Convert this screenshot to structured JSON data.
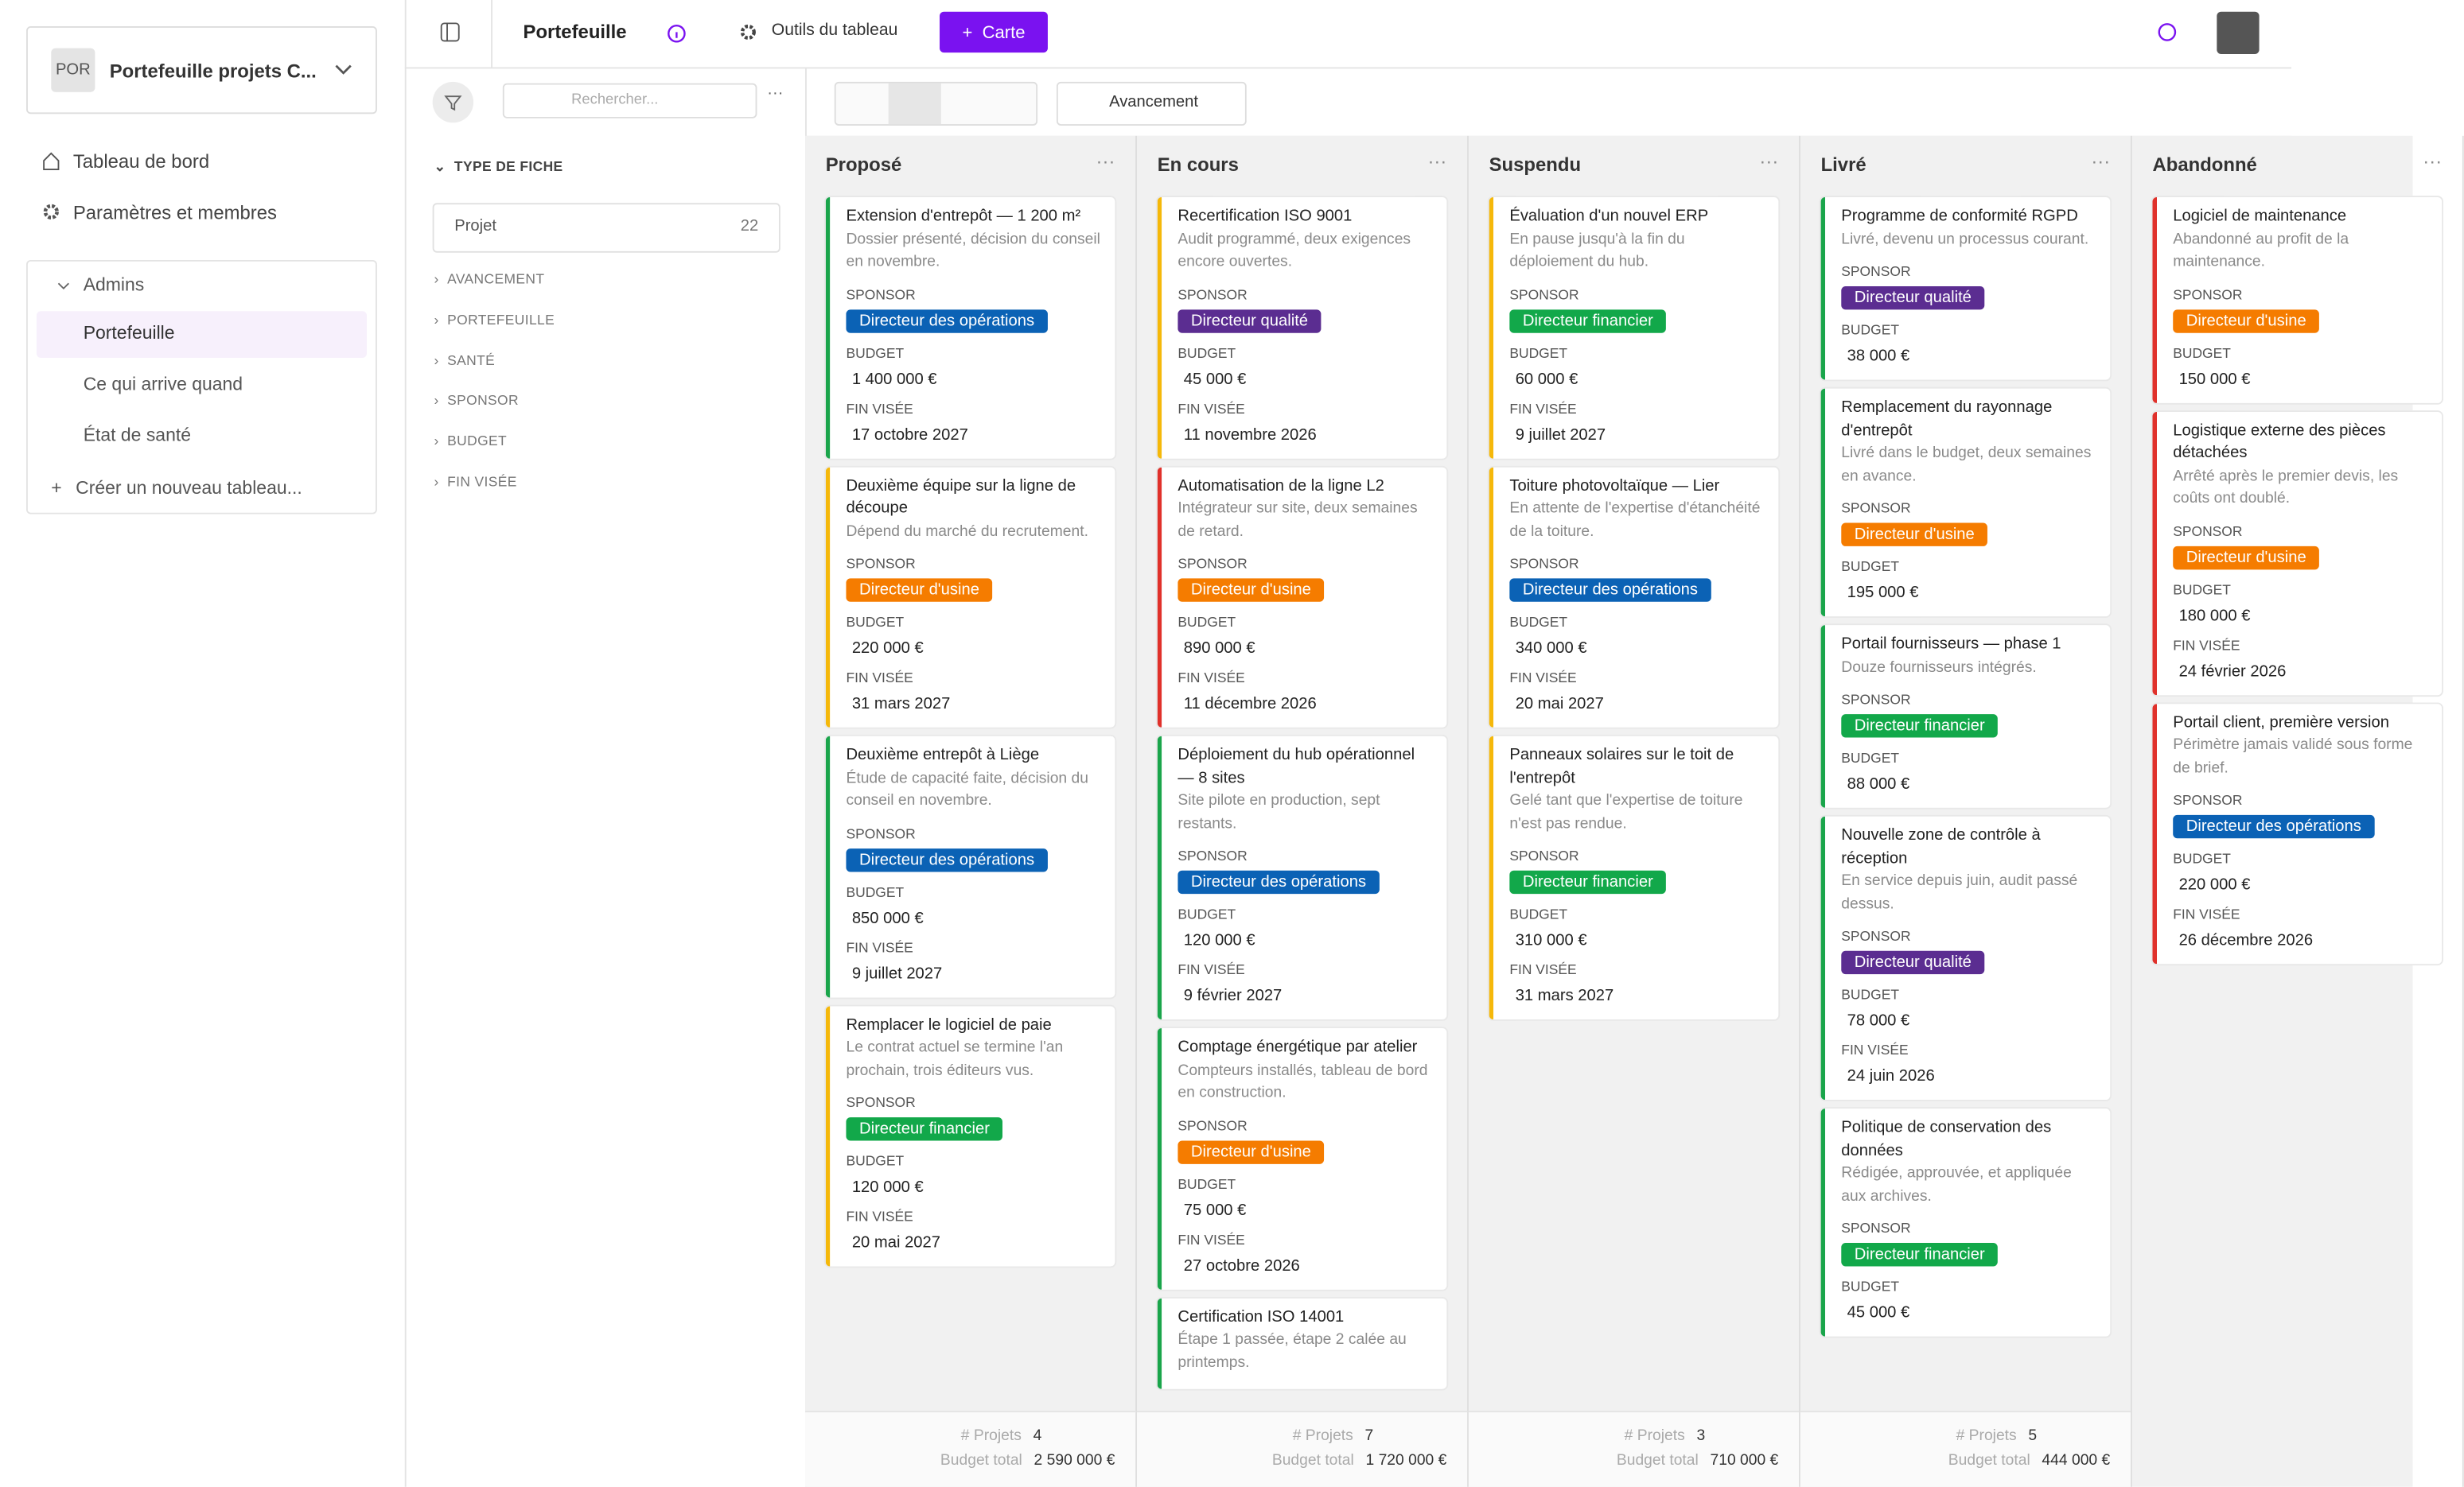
{
  "topbar": {
    "title": "Portefeuille",
    "tools": "Outils du tableau",
    "add_button": "Carte"
  },
  "sidebar": {
    "workspace_badge": "POR",
    "workspace_name": "Portefeuille projets C...",
    "nav": [
      "Tableau de bord",
      "Paramètres et membres"
    ],
    "group": {
      "name": "Admins",
      "boards": [
        "Portefeuille",
        "Ce qui arrive quand",
        "État de santé"
      ],
      "active": 0
    },
    "create": "Créer un nouveau tableau..."
  },
  "filters": {
    "search_placeholder": "Rechercher...",
    "open_section": {
      "title": "TYPE DE FICHE",
      "options": [
        {
          "label": "Projet",
          "count": "22"
        }
      ]
    },
    "sections": [
      "AVANCEMENT",
      "PORTEFEUILLE",
      "SANTÉ",
      "SPONSOR",
      "BUDGET",
      "FIN VISÉE"
    ]
  },
  "toolbar": {
    "group_by": "Avancement"
  },
  "board": {
    "field_labels": {
      "sponsor": "SPONSOR",
      "budget": "BUDGET",
      "end": "FIN VISÉE"
    },
    "footer_labels": {
      "count": "# Projets",
      "budget": "Budget total"
    },
    "columns": [
      {
        "name": "Proposé",
        "count": "4",
        "budget_total": "2 590 000 €",
        "cards": [
          {
            "title": "Extension d'entrepôt — 1 200 m²",
            "description": "Dossier présenté, décision du conseil en novembre.",
            "accent": "#1aa54b",
            "sponsor": {
              "name": "Directeur des opérations",
              "color": "#0b62b5"
            },
            "budget": "1 400 000 €",
            "end": "17 octobre 2027"
          },
          {
            "title": "Deuxième équipe sur la ligne de découpe",
            "description": "Dépend du marché du recrutement.",
            "accent": "#f5b80a",
            "sponsor": {
              "name": "Directeur d'usine",
              "color": "#f57c00"
            },
            "budget": "220 000 €",
            "end": "31 mars 2027"
          },
          {
            "title": "Deuxième entrepôt à Liège",
            "description": "Étude de capacité faite, décision du conseil en novembre.",
            "accent": "#1aa54b",
            "sponsor": {
              "name": "Directeur des opérations",
              "color": "#0b62b5"
            },
            "budget": "850 000 €",
            "end": "9 juillet 2027"
          },
          {
            "title": "Remplacer le logiciel de paie",
            "description": "Le contrat actuel se termine l'an prochain, trois éditeurs vus.",
            "accent": "#f5b80a",
            "sponsor": {
              "name": "Directeur financier",
              "color": "#12a84a"
            },
            "budget": "120 000 €",
            "end": "20 mai 2027"
          }
        ]
      },
      {
        "name": "En cours",
        "count": "7",
        "budget_total": "1 720 000 €",
        "cards": [
          {
            "title": "Recertification ISO 9001",
            "description": "Audit programmé, deux exigences encore ouvertes.",
            "accent": "#f5b80a",
            "sponsor": {
              "name": "Directeur qualité",
              "color": "#5b2d91"
            },
            "budget": "45 000 €",
            "end": "11 novembre 2026"
          },
          {
            "title": "Automatisation de la ligne L2",
            "description": "Intégrateur sur site, deux semaines de retard.",
            "accent": "#e0312b",
            "sponsor": {
              "name": "Directeur d'usine",
              "color": "#f57c00"
            },
            "budget": "890 000 €",
            "end": "11 décembre 2026"
          },
          {
            "title": "Déploiement du hub opérationnel — 8 sites",
            "description": "Site pilote en production, sept restants.",
            "accent": "#1aa54b",
            "sponsor": {
              "name": "Directeur des opérations",
              "color": "#0b62b5"
            },
            "budget": "120 000 €",
            "end": "9 février 2027"
          },
          {
            "title": "Comptage énergétique par atelier",
            "description": "Compteurs installés, tableau de bord en construction.",
            "accent": "#1aa54b",
            "sponsor": {
              "name": "Directeur d'usine",
              "color": "#f57c00"
            },
            "budget": "75 000 €",
            "end": "27 octobre 2026"
          },
          {
            "title": "Certification ISO 14001",
            "description": "Étape 1 passée, étape 2 calée au printemps.",
            "accent": "#1aa54b"
          }
        ]
      },
      {
        "name": "Suspendu",
        "count": "3",
        "budget_total": "710 000 €",
        "cards": [
          {
            "title": "Évaluation d'un nouvel ERP",
            "description": "En pause jusqu'à la fin du déploiement du hub.",
            "accent": "#f5b80a",
            "sponsor": {
              "name": "Directeur financier",
              "color": "#12a84a"
            },
            "budget": "60 000 €",
            "end": "9 juillet 2027"
          },
          {
            "title": "Toiture photovoltaïque — Lier",
            "description": "En attente de l'expertise d'étanchéité de la toiture.",
            "accent": "#f5b80a",
            "sponsor": {
              "name": "Directeur des opérations",
              "color": "#0b62b5"
            },
            "budget": "340 000 €",
            "end": "20 mai 2027"
          },
          {
            "title": "Panneaux solaires sur le toit de l'entrepôt",
            "description": "Gelé tant que l'expertise de toiture n'est pas rendue.",
            "accent": "#f5b80a",
            "sponsor": {
              "name": "Directeur financier",
              "color": "#12a84a"
            },
            "budget": "310 000 €",
            "end": "31 mars 2027"
          }
        ]
      },
      {
        "name": "Livré",
        "count": "5",
        "budget_total": "444 000 €",
        "cards": [
          {
            "title": "Programme de conformité RGPD",
            "description": "Livré, devenu un processus courant.",
            "accent": "#1aa54b",
            "sponsor": {
              "name": "Directeur qualité",
              "color": "#5b2d91"
            },
            "budget": "38 000 €"
          },
          {
            "title": "Remplacement du rayonnage d'entrepôt",
            "description": "Livré dans le budget, deux semaines en avance.",
            "accent": "#1aa54b",
            "sponsor": {
              "name": "Directeur d'usine",
              "color": "#f57c00"
            },
            "budget": "195 000 €"
          },
          {
            "title": "Portail fournisseurs — phase 1",
            "description": "Douze fournisseurs intégrés.",
            "accent": "#1aa54b",
            "sponsor": {
              "name": "Directeur financier",
              "color": "#12a84a"
            },
            "budget": "88 000 €"
          },
          {
            "title": "Nouvelle zone de contrôle à réception",
            "description": "En service depuis juin, audit passé dessus.",
            "accent": "#1aa54b",
            "sponsor": {
              "name": "Directeur qualité",
              "color": "#5b2d91"
            },
            "budget": "78 000 €",
            "end": "24 juin 2026"
          },
          {
            "title": "Politique de conservation des données",
            "description": "Rédigée, approuvée, et appliquée aux archives.",
            "accent": "#1aa54b",
            "sponsor": {
              "name": "Directeur financier",
              "color": "#12a84a"
            },
            "budget": "45 000 €"
          }
        ]
      },
      {
        "name": "Abandonné",
        "cards": [
          {
            "title": "Logiciel de maintenance",
            "description": "Abandonné au profit de la maintenance.",
            "accent": "#e0312b",
            "sponsor": {
              "name": "Directeur d'usine",
              "color": "#f57c00"
            },
            "budget": "150 000 €"
          },
          {
            "title": "Logistique externe des pièces détachées",
            "description": "Arrêté après le premier devis, les coûts ont doublé.",
            "accent": "#e0312b",
            "sponsor": {
              "name": "Directeur d'usine",
              "color": "#f57c00"
            },
            "budget": "180 000 €",
            "end": "24 février 2026"
          },
          {
            "title": "Portail client, première version",
            "description": "Périmètre jamais validé sous forme de brief.",
            "accent": "#e0312b",
            "sponsor": {
              "name": "Directeur des opérations",
              "color": "#0b62b5"
            },
            "budget": "220 000 €",
            "end": "26 décembre 2026"
          }
        ]
      }
    ]
  }
}
